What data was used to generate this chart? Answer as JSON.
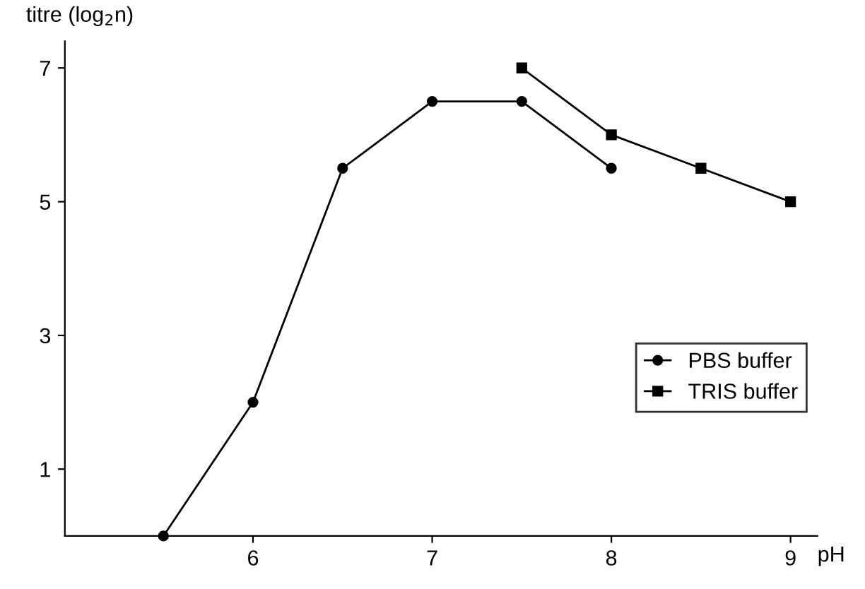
{
  "chart_data": {
    "type": "line",
    "xlabel": "pH",
    "ylabel": "titre (log$_{2}$n)",
    "series": [
      {
        "name": "PBS buffer",
        "color": "#000000",
        "marker": "circle",
        "x": [
          5.5,
          6,
          6.5,
          7,
          7.5,
          8
        ],
        "values": [
          0,
          2,
          5.5,
          6.5,
          6.5,
          5.5
        ]
      },
      {
        "name": "TRIS buffer",
        "color": "#000000",
        "marker": "square",
        "x": [
          7.5,
          8,
          8.5,
          9
        ],
        "values": [
          7,
          6,
          5.5,
          5
        ]
      }
    ],
    "xlim": [
      4.95,
      9.15
    ],
    "xticks": [
      6,
      7,
      8,
      9
    ],
    "ylim": [
      0,
      7.4
    ],
    "yticks": [
      1,
      3,
      5,
      7
    ],
    "grid": false,
    "legend": "right",
    "line_style": "solid"
  }
}
